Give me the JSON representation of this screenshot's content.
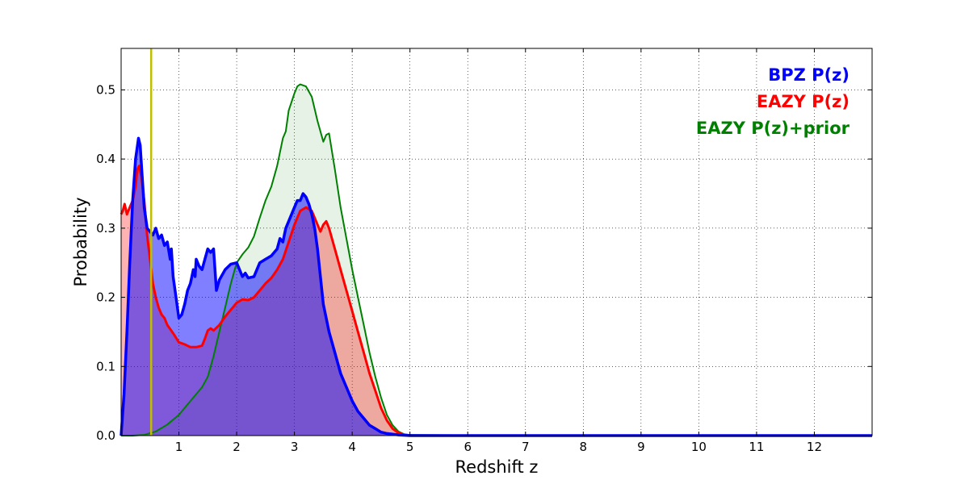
{
  "chart_data": {
    "type": "area",
    "title": "",
    "xlabel": "Redshift z",
    "ylabel": "Probability",
    "xlim": [
      0,
      13
    ],
    "ylim": [
      0,
      0.56
    ],
    "grid": true,
    "grid_style": "dotted",
    "legend_placement": "top-right",
    "x_ticks": [
      1,
      2,
      3,
      4,
      5,
      6,
      7,
      8,
      9,
      10,
      11,
      12
    ],
    "x_tick_labels": [
      "1",
      "2",
      "3",
      "4",
      "5",
      "6",
      "7",
      "8",
      "9",
      "10",
      "11",
      "12"
    ],
    "y_ticks": [
      0,
      0.1,
      0.2,
      0.3,
      0.4,
      0.5
    ],
    "y_tick_labels": [
      "0.0",
      "0.1",
      "0.2",
      "0.3",
      "0.4",
      "0.5"
    ],
    "reference_line": {
      "x": 0.52,
      "color": "#bfbf00"
    },
    "series": [
      {
        "name": "EAZY P(z)+prior",
        "color": "#008000",
        "fill": "#008000",
        "fill_opacity": 0.1,
        "line_width": 2,
        "points": [
          [
            0,
            0
          ],
          [
            0.2,
            0
          ],
          [
            0.4,
            0.001
          ],
          [
            0.6,
            0.006
          ],
          [
            0.8,
            0.016
          ],
          [
            1.0,
            0.03
          ],
          [
            1.2,
            0.05
          ],
          [
            1.4,
            0.07
          ],
          [
            1.5,
            0.085
          ],
          [
            1.6,
            0.115
          ],
          [
            1.7,
            0.15
          ],
          [
            1.8,
            0.185
          ],
          [
            1.9,
            0.22
          ],
          [
            2.0,
            0.25
          ],
          [
            2.1,
            0.262
          ],
          [
            2.2,
            0.272
          ],
          [
            2.3,
            0.288
          ],
          [
            2.4,
            0.315
          ],
          [
            2.5,
            0.34
          ],
          [
            2.6,
            0.36
          ],
          [
            2.7,
            0.39
          ],
          [
            2.8,
            0.43
          ],
          [
            2.85,
            0.44
          ],
          [
            2.9,
            0.47
          ],
          [
            3.0,
            0.495
          ],
          [
            3.05,
            0.505
          ],
          [
            3.1,
            0.508
          ],
          [
            3.2,
            0.505
          ],
          [
            3.3,
            0.49
          ],
          [
            3.4,
            0.455
          ],
          [
            3.45,
            0.44
          ],
          [
            3.5,
            0.425
          ],
          [
            3.55,
            0.435
          ],
          [
            3.6,
            0.437
          ],
          [
            3.7,
            0.385
          ],
          [
            3.8,
            0.33
          ],
          [
            3.9,
            0.285
          ],
          [
            4.0,
            0.24
          ],
          [
            4.1,
            0.2
          ],
          [
            4.2,
            0.16
          ],
          [
            4.3,
            0.12
          ],
          [
            4.4,
            0.085
          ],
          [
            4.5,
            0.055
          ],
          [
            4.6,
            0.03
          ],
          [
            4.7,
            0.015
          ],
          [
            4.8,
            0.006
          ],
          [
            4.9,
            0.002
          ],
          [
            5.0,
            0.001
          ],
          [
            6.0,
            0.0005
          ],
          [
            13,
            0
          ]
        ]
      },
      {
        "name": "EAZY P(z)",
        "color": "#ff0000",
        "fill": "#ff0000",
        "fill_opacity": 0.3,
        "line_width": 3,
        "points": [
          [
            0,
            0.32
          ],
          [
            0.03,
            0.325
          ],
          [
            0.06,
            0.335
          ],
          [
            0.1,
            0.32
          ],
          [
            0.15,
            0.33
          ],
          [
            0.2,
            0.34
          ],
          [
            0.25,
            0.36
          ],
          [
            0.28,
            0.385
          ],
          [
            0.31,
            0.39
          ],
          [
            0.35,
            0.375
          ],
          [
            0.4,
            0.34
          ],
          [
            0.45,
            0.29
          ],
          [
            0.5,
            0.255
          ],
          [
            0.55,
            0.22
          ],
          [
            0.6,
            0.2
          ],
          [
            0.65,
            0.185
          ],
          [
            0.7,
            0.175
          ],
          [
            0.75,
            0.17
          ],
          [
            0.8,
            0.16
          ],
          [
            0.9,
            0.148
          ],
          [
            1.0,
            0.135
          ],
          [
            1.1,
            0.132
          ],
          [
            1.2,
            0.128
          ],
          [
            1.3,
            0.128
          ],
          [
            1.4,
            0.13
          ],
          [
            1.45,
            0.14
          ],
          [
            1.5,
            0.152
          ],
          [
            1.55,
            0.155
          ],
          [
            1.6,
            0.152
          ],
          [
            1.7,
            0.16
          ],
          [
            1.8,
            0.172
          ],
          [
            1.9,
            0.182
          ],
          [
            2.0,
            0.192
          ],
          [
            2.1,
            0.197
          ],
          [
            2.2,
            0.196
          ],
          [
            2.3,
            0.2
          ],
          [
            2.4,
            0.21
          ],
          [
            2.5,
            0.22
          ],
          [
            2.6,
            0.228
          ],
          [
            2.7,
            0.24
          ],
          [
            2.8,
            0.255
          ],
          [
            2.9,
            0.28
          ],
          [
            3.0,
            0.305
          ],
          [
            3.1,
            0.325
          ],
          [
            3.2,
            0.33
          ],
          [
            3.3,
            0.325
          ],
          [
            3.4,
            0.305
          ],
          [
            3.45,
            0.295
          ],
          [
            3.5,
            0.305
          ],
          [
            3.55,
            0.31
          ],
          [
            3.6,
            0.3
          ],
          [
            3.7,
            0.27
          ],
          [
            3.8,
            0.24
          ],
          [
            3.9,
            0.21
          ],
          [
            4.0,
            0.18
          ],
          [
            4.1,
            0.15
          ],
          [
            4.2,
            0.12
          ],
          [
            4.3,
            0.09
          ],
          [
            4.4,
            0.065
          ],
          [
            4.5,
            0.04
          ],
          [
            4.6,
            0.022
          ],
          [
            4.7,
            0.01
          ],
          [
            4.8,
            0.004
          ],
          [
            4.9,
            0.001
          ],
          [
            5.0,
            0
          ],
          [
            13,
            0
          ]
        ]
      },
      {
        "name": "BPZ P(z)",
        "color": "#0000ff",
        "fill": "#0000ff",
        "fill_opacity": 0.5,
        "line_width": 3.5,
        "points": [
          [
            0,
            0
          ],
          [
            0.05,
            0.06
          ],
          [
            0.1,
            0.15
          ],
          [
            0.15,
            0.25
          ],
          [
            0.2,
            0.34
          ],
          [
            0.25,
            0.4
          ],
          [
            0.3,
            0.43
          ],
          [
            0.33,
            0.42
          ],
          [
            0.36,
            0.38
          ],
          [
            0.4,
            0.33
          ],
          [
            0.45,
            0.3
          ],
          [
            0.55,
            0.29
          ],
          [
            0.6,
            0.3
          ],
          [
            0.65,
            0.285
          ],
          [
            0.7,
            0.29
          ],
          [
            0.75,
            0.275
          ],
          [
            0.8,
            0.28
          ],
          [
            0.85,
            0.255
          ],
          [
            0.87,
            0.27
          ],
          [
            0.9,
            0.23
          ],
          [
            0.95,
            0.2
          ],
          [
            1.0,
            0.17
          ],
          [
            1.05,
            0.175
          ],
          [
            1.1,
            0.19
          ],
          [
            1.15,
            0.21
          ],
          [
            1.2,
            0.22
          ],
          [
            1.25,
            0.24
          ],
          [
            1.28,
            0.23
          ],
          [
            1.3,
            0.255
          ],
          [
            1.35,
            0.245
          ],
          [
            1.4,
            0.24
          ],
          [
            1.45,
            0.255
          ],
          [
            1.5,
            0.27
          ],
          [
            1.55,
            0.265
          ],
          [
            1.6,
            0.27
          ],
          [
            1.65,
            0.21
          ],
          [
            1.7,
            0.225
          ],
          [
            1.8,
            0.24
          ],
          [
            1.9,
            0.248
          ],
          [
            2.0,
            0.25
          ],
          [
            2.05,
            0.24
          ],
          [
            2.1,
            0.23
          ],
          [
            2.15,
            0.235
          ],
          [
            2.2,
            0.228
          ],
          [
            2.3,
            0.23
          ],
          [
            2.4,
            0.25
          ],
          [
            2.5,
            0.255
          ],
          [
            2.6,
            0.26
          ],
          [
            2.7,
            0.27
          ],
          [
            2.75,
            0.285
          ],
          [
            2.8,
            0.28
          ],
          [
            2.85,
            0.3
          ],
          [
            2.9,
            0.31
          ],
          [
            3.0,
            0.33
          ],
          [
            3.05,
            0.34
          ],
          [
            3.1,
            0.34
          ],
          [
            3.15,
            0.35
          ],
          [
            3.2,
            0.345
          ],
          [
            3.25,
            0.335
          ],
          [
            3.3,
            0.32
          ],
          [
            3.35,
            0.3
          ],
          [
            3.4,
            0.27
          ],
          [
            3.45,
            0.23
          ],
          [
            3.5,
            0.19
          ],
          [
            3.6,
            0.15
          ],
          [
            3.7,
            0.12
          ],
          [
            3.8,
            0.09
          ],
          [
            3.9,
            0.07
          ],
          [
            4.0,
            0.05
          ],
          [
            4.1,
            0.035
          ],
          [
            4.2,
            0.025
          ],
          [
            4.3,
            0.015
          ],
          [
            4.4,
            0.01
          ],
          [
            4.5,
            0.005
          ],
          [
            4.6,
            0.003
          ],
          [
            4.8,
            0.001
          ],
          [
            5.0,
            0
          ],
          [
            13,
            0
          ]
        ]
      }
    ],
    "legend": [
      {
        "label": "BPZ P(z)",
        "color": "#0000ff"
      },
      {
        "label": "EAZY P(z)",
        "color": "#ff0000"
      },
      {
        "label": "EAZY P(z)+prior",
        "color": "#008000"
      }
    ]
  }
}
